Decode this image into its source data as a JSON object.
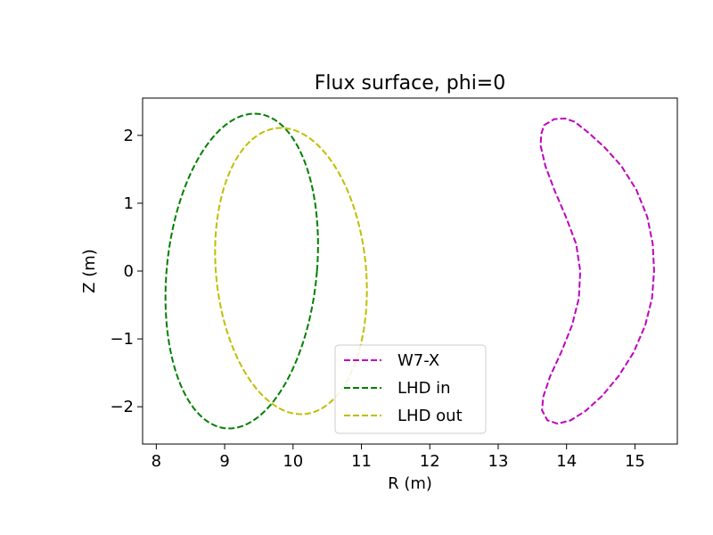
{
  "chart_data": {
    "type": "line",
    "title": "Flux surface, phi=0",
    "xlabel": "R (m)",
    "ylabel": "Z (m)",
    "xlim": [
      7.8,
      15.62
    ],
    "ylim": [
      -2.55,
      2.55
    ],
    "xticks": [
      8,
      9,
      10,
      11,
      12,
      13,
      14,
      15
    ],
    "yticks": [
      -2,
      -1,
      0,
      1,
      2
    ],
    "xtick_labels": [
      "8",
      "9",
      "10",
      "11",
      "12",
      "13",
      "14",
      "15"
    ],
    "ytick_labels": [
      "−2",
      "−1",
      "0",
      "1",
      "2"
    ],
    "grid": false,
    "legend_position": "lower-center",
    "series": [
      {
        "name": "W7-X",
        "color": "#bf00bf",
        "style": "dashed",
        "x": [
          13.67,
          13.82,
          13.98,
          14.12,
          14.32,
          14.56,
          14.8,
          15.02,
          15.18,
          15.26,
          15.28,
          15.25,
          15.15,
          14.98,
          14.76,
          14.52,
          14.28,
          14.06,
          13.87,
          13.72,
          13.64,
          13.66,
          13.76,
          13.92,
          14.08,
          14.18,
          14.2,
          14.14,
          13.99,
          13.82,
          13.69,
          13.62,
          13.63,
          13.67
        ],
        "y": [
          2.15,
          2.24,
          2.25,
          2.2,
          2.04,
          1.82,
          1.55,
          1.2,
          0.8,
          0.4,
          0.0,
          -0.4,
          -0.8,
          -1.2,
          -1.55,
          -1.84,
          -2.06,
          -2.2,
          -2.25,
          -2.2,
          -2.05,
          -1.85,
          -1.55,
          -1.2,
          -0.8,
          -0.4,
          0.0,
          0.4,
          0.8,
          1.2,
          1.55,
          1.85,
          2.02,
          2.15
        ]
      },
      {
        "name": "LHD in",
        "color": "#008000",
        "style": "dashed",
        "center": [
          9.25,
          0.0
        ],
        "radii": [
          1.1,
          2.32
        ],
        "tilt": 0.08
      },
      {
        "name": "LHD out",
        "color": "#bfbf00",
        "style": "dashed",
        "center": [
          9.97,
          0.0
        ],
        "radii": [
          1.1,
          2.11
        ],
        "tilt": -0.07
      }
    ]
  }
}
